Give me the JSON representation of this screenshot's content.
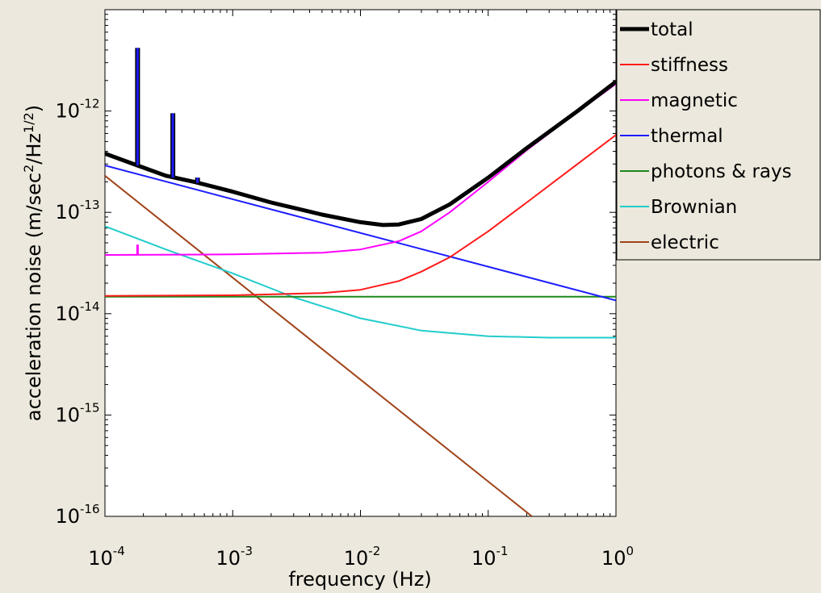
{
  "figure": {
    "background": "#ece8dd"
  },
  "chart_data": {
    "type": "line",
    "title": "",
    "xlabel": "frequency (Hz)",
    "ylabel": {
      "text": "acceleration noise (m/sec",
      "sup1": "2",
      "mid": "/Hz",
      "sup2": "1/2",
      "end": ")"
    },
    "xscale": "log",
    "yscale": "log",
    "xlim": [
      0.0001,
      1
    ],
    "ylim": [
      1e-16,
      1e-11
    ],
    "grid": false,
    "legend_position": "outside-top-right",
    "x_ticks": [
      {
        "value": 0.0001,
        "base": "10",
        "exp": "-4"
      },
      {
        "value": 0.001,
        "base": "10",
        "exp": "-3"
      },
      {
        "value": 0.01,
        "base": "10",
        "exp": "-2"
      },
      {
        "value": 0.1,
        "base": "10",
        "exp": "-1"
      },
      {
        "value": 1,
        "base": "10",
        "exp": "0"
      }
    ],
    "y_ticks": [
      {
        "value": 1e-16,
        "base": "10",
        "exp": "-16"
      },
      {
        "value": 1e-15,
        "base": "10",
        "exp": "-15"
      },
      {
        "value": 1e-14,
        "base": "10",
        "exp": "-14"
      },
      {
        "value": 1e-13,
        "base": "10",
        "exp": "-13"
      },
      {
        "value": 1e-12,
        "base": "10",
        "exp": "-12"
      }
    ],
    "series": [
      {
        "name": "total",
        "color": "#000000",
        "thick": true,
        "points": [
          [
            0.0001,
            3.8e-13
          ],
          [
            0.00018,
            2.9e-13
          ],
          [
            0.0003,
            2.3e-13
          ],
          [
            0.0005,
            2e-13
          ],
          [
            0.001,
            1.6e-13
          ],
          [
            0.002,
            1.25e-13
          ],
          [
            0.005,
            9.5e-14
          ],
          [
            0.01,
            8e-14
          ],
          [
            0.015,
            7.5e-14
          ],
          [
            0.02,
            7.6e-14
          ],
          [
            0.03,
            8.6e-14
          ],
          [
            0.05,
            1.2e-13
          ],
          [
            0.1,
            2.2e-13
          ],
          [
            0.2,
            4.3e-13
          ],
          [
            0.5,
            1e-12
          ],
          [
            1,
            1.95e-12
          ]
        ],
        "spikes": [
          [
            0.00018,
            2.9e-13,
            4.2e-12
          ],
          [
            0.00034,
            2.2e-13,
            9.5e-13
          ],
          [
            0.00053,
            1.95e-13,
            2.2e-13
          ]
        ]
      },
      {
        "name": "stiffness",
        "color": "#ff1a1a",
        "points": [
          [
            0.0001,
            1.5e-14
          ],
          [
            0.001,
            1.52e-14
          ],
          [
            0.005,
            1.6e-14
          ],
          [
            0.01,
            1.72e-14
          ],
          [
            0.02,
            2.1e-14
          ],
          [
            0.03,
            2.6e-14
          ],
          [
            0.05,
            3.6e-14
          ],
          [
            0.1,
            6.5e-14
          ],
          [
            0.2,
            1.25e-13
          ],
          [
            0.5,
            3e-13
          ],
          [
            1,
            5.8e-13
          ]
        ]
      },
      {
        "name": "magnetic",
        "color": "#ff00ff",
        "points": [
          [
            0.0001,
            3.8e-14
          ],
          [
            0.001,
            3.85e-14
          ],
          [
            0.005,
            4e-14
          ],
          [
            0.01,
            4.3e-14
          ],
          [
            0.02,
            5.2e-14
          ],
          [
            0.03,
            6.5e-14
          ],
          [
            0.05,
            1e-13
          ],
          [
            0.1,
            2e-13
          ],
          [
            0.2,
            4.1e-13
          ],
          [
            0.5,
            9.8e-13
          ],
          [
            1,
            1.85e-12
          ]
        ],
        "spikes": [
          [
            0.00018,
            3.8e-14,
            4.8e-14
          ]
        ]
      },
      {
        "name": "thermal",
        "color": "#1c1cff",
        "points": [
          [
            0.0001,
            2.9e-13
          ],
          [
            1,
            1.35e-14
          ]
        ]
      },
      {
        "name": "photons & rays",
        "color": "#1a8a1a",
        "points": [
          [
            0.0001,
            1.47e-14
          ],
          [
            1,
            1.47e-14
          ]
        ]
      },
      {
        "name": "Brownian",
        "color": "#22cccc",
        "points": [
          [
            0.0001,
            7.3e-14
          ],
          [
            0.0003,
            4.3e-14
          ],
          [
            0.001,
            2.5e-14
          ],
          [
            0.003,
            1.45e-14
          ],
          [
            0.01,
            9e-15
          ],
          [
            0.03,
            6.8e-15
          ],
          [
            0.1,
            6e-15
          ],
          [
            0.3,
            5.8e-15
          ],
          [
            1,
            5.8e-15
          ]
        ]
      },
      {
        "name": "electric",
        "color": "#a0441a",
        "points": [
          [
            0.0001,
            2.3e-13
          ],
          [
            0.22,
            1e-16
          ]
        ]
      }
    ]
  }
}
